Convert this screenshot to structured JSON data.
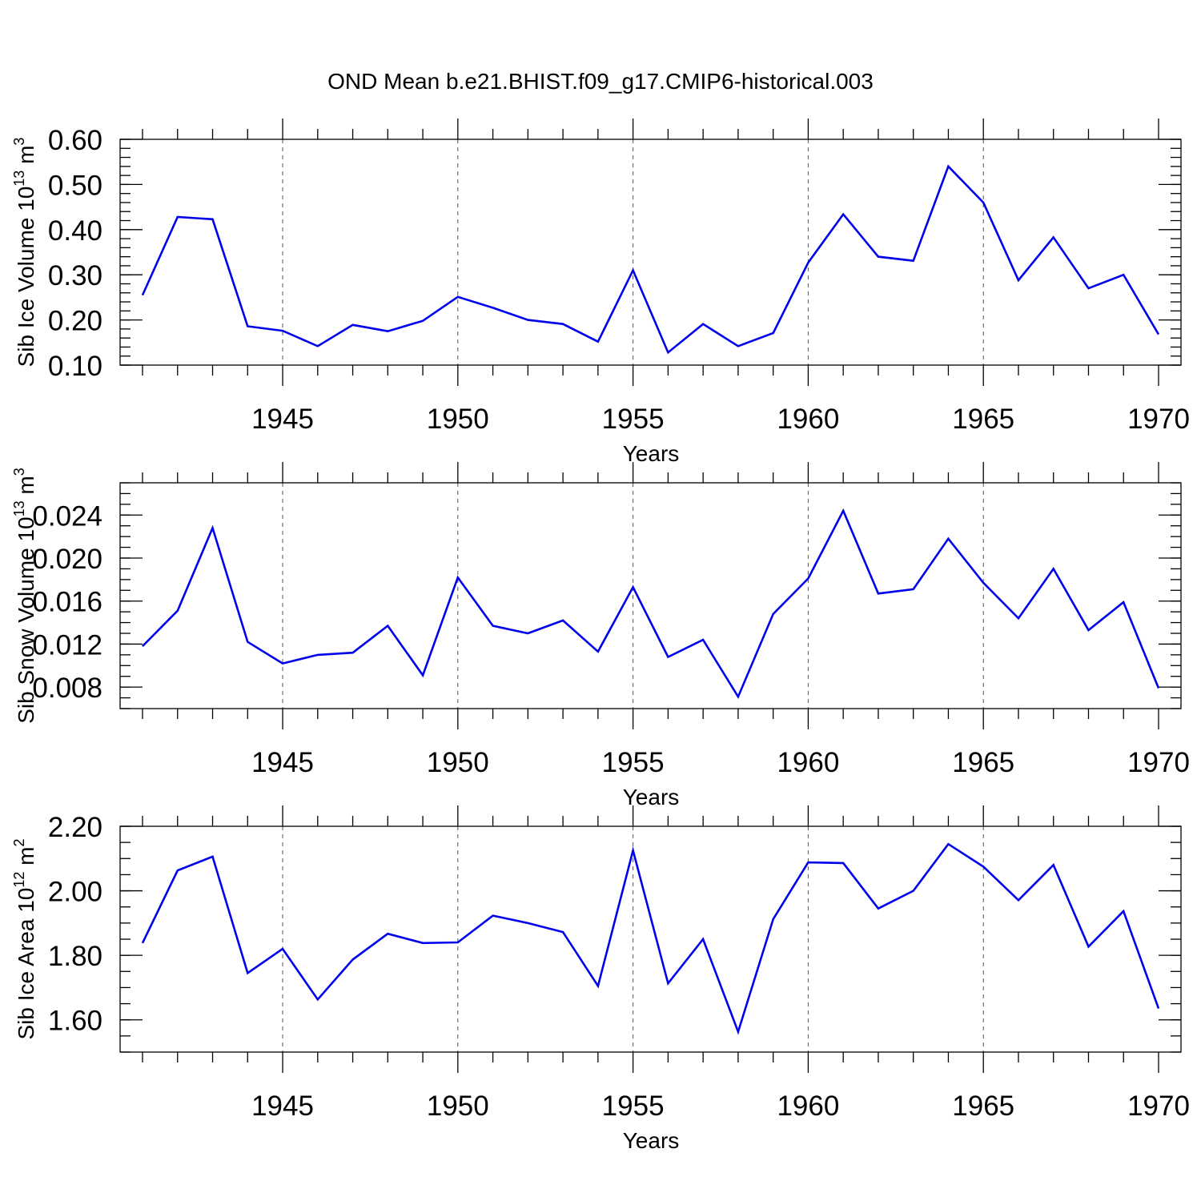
{
  "figure": {
    "title": "OND Mean b.e21.BHIST.f09_g17.CMIP6-historical.003"
  },
  "line_color": "#0000ee",
  "chart_data": [
    {
      "type": "line",
      "ylabel_main": "Sib Ice Volume 10",
      "ylabel_exp": "13",
      "ylabel_unit": " m",
      "ylabel_unit_exp": "3",
      "xlabel": "Years",
      "xlim": [
        1941,
        1970
      ],
      "ylim": [
        0.1,
        0.6
      ],
      "yticks": [
        0.1,
        0.2,
        0.3,
        0.4,
        0.5,
        0.6
      ],
      "ytick_labels": [
        "0.10",
        "0.20",
        "0.30",
        "0.40",
        "0.50",
        "0.60"
      ],
      "yminor_step": 0.02,
      "xticks": [
        1945,
        1950,
        1955,
        1960,
        1965,
        1970
      ],
      "xtick_labels": [
        "1945",
        "1950",
        "1955",
        "1960",
        "1965",
        "1970"
      ],
      "grid": "vertical dashed at major x ticks",
      "x": [
        1941,
        1942,
        1943,
        1944,
        1945,
        1946,
        1947,
        1948,
        1949,
        1950,
        1951,
        1952,
        1953,
        1954,
        1955,
        1956,
        1957,
        1958,
        1959,
        1960,
        1961,
        1962,
        1963,
        1964,
        1965,
        1966,
        1967,
        1968,
        1969,
        1970
      ],
      "series": [
        {
          "name": "Sib Ice Volume",
          "values": [
            0.255,
            0.428,
            0.423,
            0.186,
            0.176,
            0.142,
            0.189,
            0.175,
            0.198,
            0.251,
            0.227,
            0.2,
            0.191,
            0.152,
            0.31,
            0.128,
            0.191,
            0.142,
            0.171,
            0.327,
            0.434,
            0.34,
            0.331,
            0.54,
            0.46,
            0.288,
            0.383,
            0.27,
            0.3,
            0.168
          ]
        }
      ]
    },
    {
      "type": "line",
      "ylabel_main": "Sib Snow Volume 10",
      "ylabel_exp": "13",
      "ylabel_unit": " m",
      "ylabel_unit_exp": "3",
      "xlabel": "Years",
      "xlim": [
        1941,
        1970
      ],
      "ylim": [
        0.006,
        0.027
      ],
      "yticks": [
        0.008,
        0.012,
        0.016,
        0.02,
        0.024
      ],
      "ytick_labels": [
        "0.008",
        "0.012",
        "0.016",
        "0.020",
        "0.024"
      ],
      "yminor_step": 0.001,
      "xticks": [
        1945,
        1950,
        1955,
        1960,
        1965,
        1970
      ],
      "xtick_labels": [
        "1945",
        "1950",
        "1955",
        "1960",
        "1965",
        "1970"
      ],
      "grid": "vertical dashed at major x ticks",
      "x": [
        1941,
        1942,
        1943,
        1944,
        1945,
        1946,
        1947,
        1948,
        1949,
        1950,
        1951,
        1952,
        1953,
        1954,
        1955,
        1956,
        1957,
        1958,
        1959,
        1960,
        1961,
        1962,
        1963,
        1964,
        1965,
        1966,
        1967,
        1968,
        1969,
        1970
      ],
      "series": [
        {
          "name": "Sib Snow Volume",
          "values": [
            0.0118,
            0.0151,
            0.0228,
            0.0122,
            0.0102,
            0.011,
            0.0112,
            0.0137,
            0.0091,
            0.0182,
            0.0137,
            0.013,
            0.0142,
            0.0113,
            0.0173,
            0.0108,
            0.0124,
            0.0071,
            0.0148,
            0.0181,
            0.0244,
            0.0167,
            0.0171,
            0.0218,
            0.0177,
            0.0144,
            0.019,
            0.0133,
            0.0159,
            0.0079
          ]
        }
      ]
    },
    {
      "type": "line",
      "ylabel_main": "Sib Ice Area 10",
      "ylabel_exp": "12",
      "ylabel_unit": " m",
      "ylabel_unit_exp": "2",
      "xlabel": "Years",
      "xlim": [
        1941,
        1970
      ],
      "ylim": [
        1.5,
        2.2
      ],
      "yticks": [
        1.6,
        1.8,
        2.0,
        2.2
      ],
      "ytick_labels": [
        "1.60",
        "1.80",
        "2.00",
        "2.20"
      ],
      "yminor_step": 0.05,
      "xticks": [
        1945,
        1950,
        1955,
        1960,
        1965,
        1970
      ],
      "xtick_labels": [
        "1945",
        "1950",
        "1955",
        "1960",
        "1965",
        "1970"
      ],
      "grid": "vertical dashed at major x ticks",
      "x": [
        1941,
        1942,
        1943,
        1944,
        1945,
        1946,
        1947,
        1948,
        1949,
        1950,
        1951,
        1952,
        1953,
        1954,
        1955,
        1956,
        1957,
        1958,
        1959,
        1960,
        1961,
        1962,
        1963,
        1964,
        1965,
        1966,
        1967,
        1968,
        1969,
        1970
      ],
      "series": [
        {
          "name": "Sib Ice Area",
          "values": [
            1.838,
            2.063,
            2.106,
            1.745,
            1.82,
            1.663,
            1.787,
            1.867,
            1.838,
            1.84,
            1.923,
            1.9,
            1.872,
            1.705,
            2.125,
            1.713,
            1.85,
            1.563,
            1.912,
            2.088,
            2.086,
            1.945,
            2.0,
            2.145,
            2.075,
            1.971,
            2.08,
            1.827,
            1.937,
            1.635
          ]
        }
      ]
    }
  ]
}
